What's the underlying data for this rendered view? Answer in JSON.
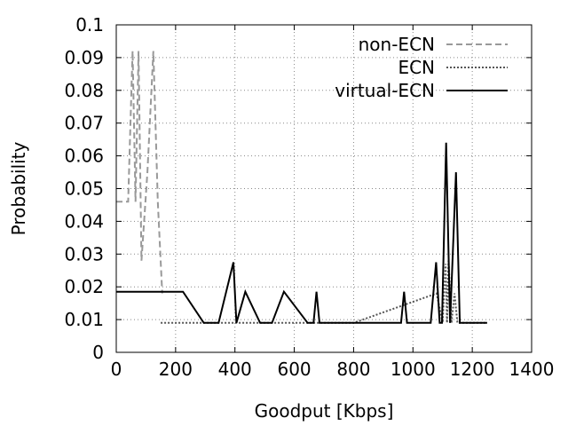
{
  "chart_data": {
    "type": "line",
    "xlabel": "Goodput [Kbps]",
    "ylabel": "Probability",
    "xlim": [
      0,
      1400
    ],
    "ylim": [
      0,
      0.1
    ],
    "x_ticks": [
      0,
      200,
      400,
      600,
      800,
      1000,
      1200,
      1400
    ],
    "y_ticks": [
      0,
      0.01,
      0.02,
      0.03,
      0.04,
      0.05,
      0.06,
      0.07,
      0.08,
      0.09,
      0.1
    ],
    "x_tick_labels": [
      "0",
      "200",
      "400",
      "600",
      "800",
      "1000",
      "1200",
      "1400"
    ],
    "y_tick_labels": [
      "0",
      "0.01",
      "0.02",
      "0.03",
      "0.04",
      "0.05",
      "0.06",
      "0.07",
      "0.08",
      "0.09",
      "0.1"
    ],
    "grid": true,
    "legend_position": "top-right",
    "series": [
      {
        "name": "non-ECN",
        "color": "#999999",
        "style": "dashed",
        "points": [
          [
            0,
            0.046
          ],
          [
            40,
            0.046
          ],
          [
            55,
            0.092
          ],
          [
            65,
            0.046
          ],
          [
            75,
            0.092
          ],
          [
            85,
            0.028
          ],
          [
            105,
            0.055
          ],
          [
            125,
            0.092
          ],
          [
            140,
            0.046
          ],
          [
            155,
            0.018
          ]
        ]
      },
      {
        "name": "ECN",
        "color": "#555555",
        "style": "dotted",
        "points": [
          [
            150,
            0.009
          ],
          [
            800,
            0.009
          ],
          [
            1080,
            0.018
          ],
          [
            1100,
            0.009
          ],
          [
            1105,
            0.018
          ],
          [
            1110,
            0.027
          ],
          [
            1115,
            0.009
          ],
          [
            1120,
            0.028
          ],
          [
            1130,
            0.009
          ],
          [
            1140,
            0.018
          ],
          [
            1150,
            0.009
          ],
          [
            1160,
            0.009
          ],
          [
            1250,
            0.009
          ]
        ]
      },
      {
        "name": "virtual-ECN",
        "color": "#000000",
        "style": "solid",
        "points": [
          [
            0,
            0.0185
          ],
          [
            225,
            0.0185
          ],
          [
            295,
            0.009
          ],
          [
            345,
            0.009
          ],
          [
            395,
            0.0275
          ],
          [
            405,
            0.009
          ],
          [
            435,
            0.0185
          ],
          [
            485,
            0.009
          ],
          [
            525,
            0.009
          ],
          [
            565,
            0.0185
          ],
          [
            645,
            0.009
          ],
          [
            665,
            0.009
          ],
          [
            675,
            0.0185
          ],
          [
            685,
            0.009
          ],
          [
            960,
            0.009
          ],
          [
            970,
            0.0185
          ],
          [
            980,
            0.009
          ],
          [
            1060,
            0.009
          ],
          [
            1078,
            0.0275
          ],
          [
            1090,
            0.009
          ],
          [
            1098,
            0.009
          ],
          [
            1112,
            0.064
          ],
          [
            1125,
            0.009
          ],
          [
            1145,
            0.055
          ],
          [
            1158,
            0.009
          ],
          [
            1250,
            0.009
          ]
        ]
      }
    ]
  }
}
